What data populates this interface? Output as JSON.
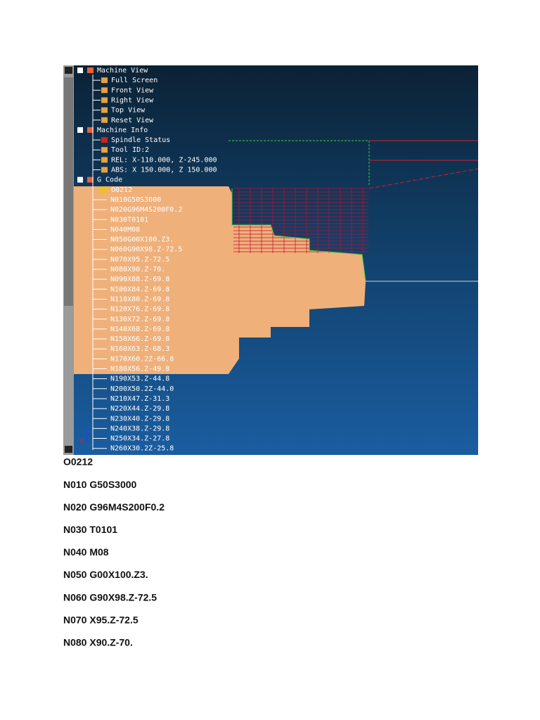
{
  "screenshot": {
    "tree": [
      "Machine View",
      "Full Screen",
      "Front View",
      "Right View",
      "Top View",
      "Reset View",
      "Machine Info",
      "Spindle Status",
      "Tool ID:2",
      "REL: X-110.000, Z-245.000",
      "ABS: X 150.000, Z 150.000",
      "G Code"
    ],
    "program": "O0212",
    "code": [
      "N010G50S3000",
      "N020G96M4S200F0.2",
      "N030T0101",
      "N040M08",
      "N050G00X100.Z3.",
      "N060G90X98.Z-72.5",
      "N070X95.Z-72.5",
      "N080X90.Z-70.",
      "N090X88.Z-69.8",
      "N100X84.Z-69.8",
      "N110X80.Z-69.8",
      "N120X76.Z-69.8",
      "N130X72.Z-69.8",
      "N140X68.Z-69.8",
      "N150X66.Z-69.8",
      "N160X63.Z-68.3",
      "N170X60.2Z-66.8",
      "N180X56.Z-49.8",
      "N190X53.Z-44.8",
      "N200X50.2Z-44.0",
      "N210X47.Z-31.3",
      "N220X44.Z-29.8",
      "N230X40.Z-29.8",
      "N240X38.Z-29.8",
      "N250X34.Z-27.8",
      "N260X30.2Z-25.8"
    ]
  },
  "listing": [
    "O0212",
    "N010 G50S3000",
    "N020 G96M4S200F0.2",
    "N030 T0101",
    "N040 M08",
    "N050 G00X100.Z3.",
    "N060 G90X98.Z-72.5",
    "N070 X95.Z-72.5",
    "N080 X90.Z-70."
  ]
}
